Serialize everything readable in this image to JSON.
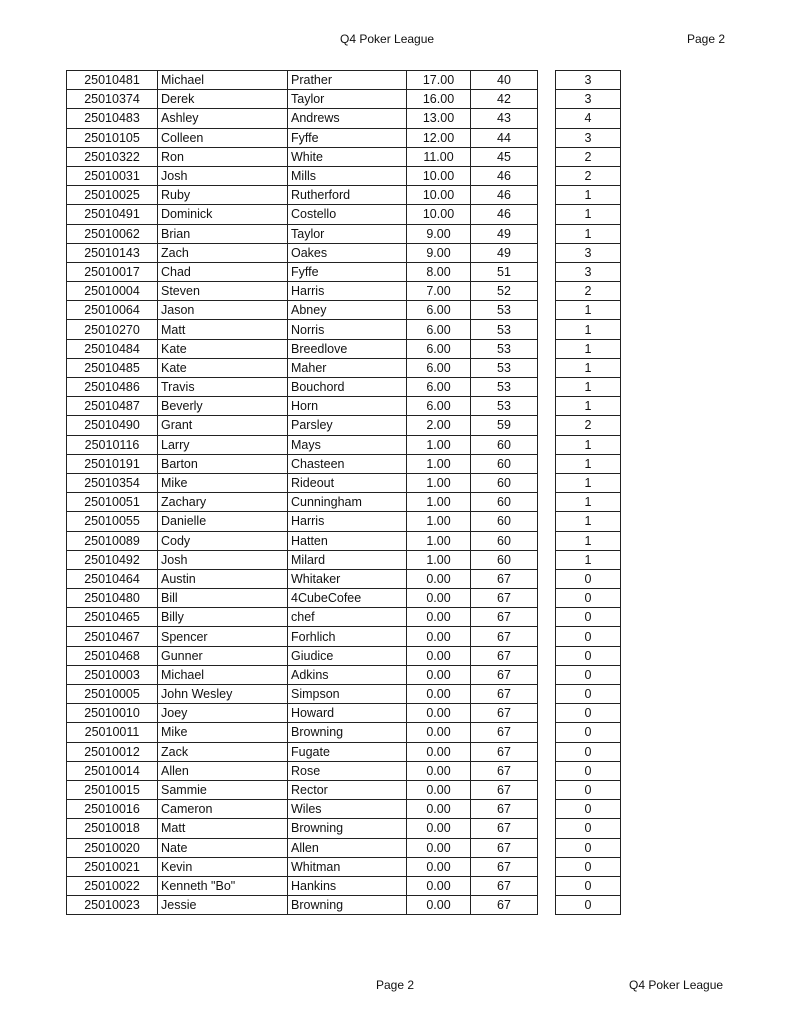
{
  "header": {
    "title": "Q4 Poker League",
    "page": "Page 2"
  },
  "footer": {
    "page": "Page 2",
    "title": "Q4 Poker League"
  },
  "rows": [
    [
      "25010481",
      "Michael",
      "Prather",
      "17.00",
      "40",
      "3"
    ],
    [
      "25010374",
      "Derek",
      "Taylor",
      "16.00",
      "42",
      "3"
    ],
    [
      "25010483",
      "Ashley",
      "Andrews",
      "13.00",
      "43",
      "4"
    ],
    [
      "25010105",
      "Colleen",
      "Fyffe",
      "12.00",
      "44",
      "3"
    ],
    [
      "25010322",
      "Ron",
      "White",
      "11.00",
      "45",
      "2"
    ],
    [
      "25010031",
      "Josh",
      "Mills",
      "10.00",
      "46",
      "2"
    ],
    [
      "25010025",
      "Ruby",
      "Rutherford",
      "10.00",
      "46",
      "1"
    ],
    [
      "25010491",
      "Dominick",
      "Costello",
      "10.00",
      "46",
      "1"
    ],
    [
      "25010062",
      "Brian",
      "Taylor",
      "9.00",
      "49",
      "1"
    ],
    [
      "25010143",
      "Zach",
      "Oakes",
      "9.00",
      "49",
      "3"
    ],
    [
      "25010017",
      "Chad",
      "Fyffe",
      "8.00",
      "51",
      "3"
    ],
    [
      "25010004",
      "Steven",
      "Harris",
      "7.00",
      "52",
      "2"
    ],
    [
      "25010064",
      "Jason",
      "Abney",
      "6.00",
      "53",
      "1"
    ],
    [
      "25010270",
      "Matt",
      "Norris",
      "6.00",
      "53",
      "1"
    ],
    [
      "25010484",
      "Kate",
      "Breedlove",
      "6.00",
      "53",
      "1"
    ],
    [
      "25010485",
      "Kate",
      "Maher",
      "6.00",
      "53",
      "1"
    ],
    [
      "25010486",
      "Travis",
      "Bouchord",
      "6.00",
      "53",
      "1"
    ],
    [
      "25010487",
      "Beverly",
      "Horn",
      "6.00",
      "53",
      "1"
    ],
    [
      "25010490",
      "Grant",
      "Parsley",
      "2.00",
      "59",
      "2"
    ],
    [
      "25010116",
      "Larry",
      "Mays",
      "1.00",
      "60",
      "1"
    ],
    [
      "25010191",
      "Barton",
      "Chasteen",
      "1.00",
      "60",
      "1"
    ],
    [
      "25010354",
      "Mike",
      "Rideout",
      "1.00",
      "60",
      "1"
    ],
    [
      "25010051",
      "Zachary",
      "Cunningham",
      "1.00",
      "60",
      "1"
    ],
    [
      "25010055",
      "Danielle",
      "Harris",
      "1.00",
      "60",
      "1"
    ],
    [
      "25010089",
      "Cody",
      "Hatten",
      "1.00",
      "60",
      "1"
    ],
    [
      "25010492",
      "Josh",
      "Milard",
      "1.00",
      "60",
      "1"
    ],
    [
      "25010464",
      "Austin",
      "Whitaker",
      "0.00",
      "67",
      "0"
    ],
    [
      "25010480",
      "Bill",
      "4CubeCofee",
      "0.00",
      "67",
      "0"
    ],
    [
      "25010465",
      "Billy",
      "chef",
      "0.00",
      "67",
      "0"
    ],
    [
      "25010467",
      "Spencer",
      "Forhlich",
      "0.00",
      "67",
      "0"
    ],
    [
      "25010468",
      "Gunner",
      "Giudice",
      "0.00",
      "67",
      "0"
    ],
    [
      "25010003",
      "Michael",
      "Adkins",
      "0.00",
      "67",
      "0"
    ],
    [
      "25010005",
      "John Wesley",
      "Simpson",
      "0.00",
      "67",
      "0"
    ],
    [
      "25010010",
      "Joey",
      "Howard",
      "0.00",
      "67",
      "0"
    ],
    [
      "25010011",
      "Mike",
      "Browning",
      "0.00",
      "67",
      "0"
    ],
    [
      "25010012",
      "Zack",
      "Fugate",
      "0.00",
      "67",
      "0"
    ],
    [
      "25010014",
      "Allen",
      "Rose",
      "0.00",
      "67",
      "0"
    ],
    [
      "25010015",
      "Sammie",
      "Rector",
      "0.00",
      "67",
      "0"
    ],
    [
      "25010016",
      "Cameron",
      "Wiles",
      "0.00",
      "67",
      "0"
    ],
    [
      "25010018",
      "Matt",
      "Browning",
      "0.00",
      "67",
      "0"
    ],
    [
      "25010020",
      "Nate",
      "Allen",
      "0.00",
      "67",
      "0"
    ],
    [
      "25010021",
      "Kevin",
      "Whitman",
      "0.00",
      "67",
      "0"
    ],
    [
      "25010022",
      "Kenneth \"Bo\"",
      "Hankins",
      "0.00",
      "67",
      "0"
    ],
    [
      "25010023",
      "Jessie",
      "Browning",
      "0.00",
      "67",
      "0"
    ]
  ]
}
